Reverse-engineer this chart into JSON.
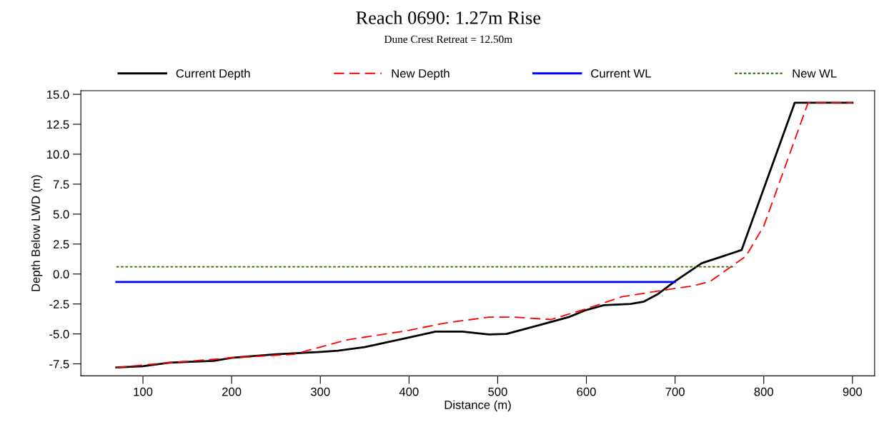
{
  "chart_data": {
    "type": "line",
    "title": "Reach 0690: 1.27m Rise",
    "subtitle": "Dune Crest Retreat = 12.50m",
    "xlabel": "Distance (m)",
    "ylabel": "Depth Below LWD (m)",
    "xlim": [
      30,
      925
    ],
    "xticks": [
      100,
      200,
      300,
      400,
      500,
      600,
      700,
      800,
      900
    ],
    "ylim": [
      -8.5,
      15.3
    ],
    "yticks": [
      {
        "value": -7.5,
        "label": "-7.5"
      },
      {
        "value": -5.0,
        "label": "-5.0"
      },
      {
        "value": -2.5,
        "label": "-2.5"
      },
      {
        "value": 0.0,
        "label": "0.0"
      },
      {
        "value": 2.5,
        "label": "2.5"
      },
      {
        "value": 5.0,
        "label": "5.0"
      },
      {
        "value": 7.5,
        "label": "7.5"
      },
      {
        "value": 10.0,
        "label": "10.0"
      },
      {
        "value": 12.5,
        "label": "12.5"
      },
      {
        "value": 15.0,
        "label": "15.0"
      }
    ],
    "grid": false,
    "legend": "top",
    "marker": "none",
    "series": [
      {
        "name": "Current Depth",
        "color": "#000000",
        "line_style": "solid",
        "x": [
          70,
          100,
          130,
          180,
          200,
          250,
          300,
          320,
          350,
          400,
          430,
          460,
          490,
          510,
          540,
          580,
          600,
          620,
          650,
          665,
          680,
          700,
          730,
          775,
          835,
          900
        ],
        "values": [
          -7.8,
          -7.7,
          -7.4,
          -7.25,
          -7.0,
          -6.7,
          -6.5,
          -6.4,
          -6.1,
          -5.3,
          -4.8,
          -4.8,
          -5.05,
          -5.0,
          -4.4,
          -3.6,
          -3.0,
          -2.6,
          -2.5,
          -2.3,
          -1.7,
          -0.6,
          0.9,
          2.0,
          14.3,
          14.3
        ]
      },
      {
        "name": "New Depth",
        "color": "#ff0000",
        "line_style": "dashed",
        "x": [
          70,
          130,
          200,
          270,
          330,
          400,
          440,
          490,
          520,
          560,
          600,
          640,
          700,
          720,
          740,
          780,
          800,
          850,
          900
        ],
        "values": [
          -7.8,
          -7.4,
          -7.0,
          -6.7,
          -5.5,
          -4.7,
          -4.1,
          -3.6,
          -3.6,
          -3.8,
          -2.9,
          -1.9,
          -1.2,
          -1.0,
          -0.6,
          1.5,
          4.0,
          14.3,
          14.3
        ]
      },
      {
        "name": "Current WL",
        "color": "#0000ff",
        "line_style": "solid",
        "x": [
          70,
          700
        ],
        "values": [
          -0.67,
          -0.67
        ]
      },
      {
        "name": "New WL",
        "color": "#336600",
        "line_style": "dotted",
        "x": [
          70,
          768
        ],
        "values": [
          0.6,
          0.6
        ]
      }
    ]
  }
}
